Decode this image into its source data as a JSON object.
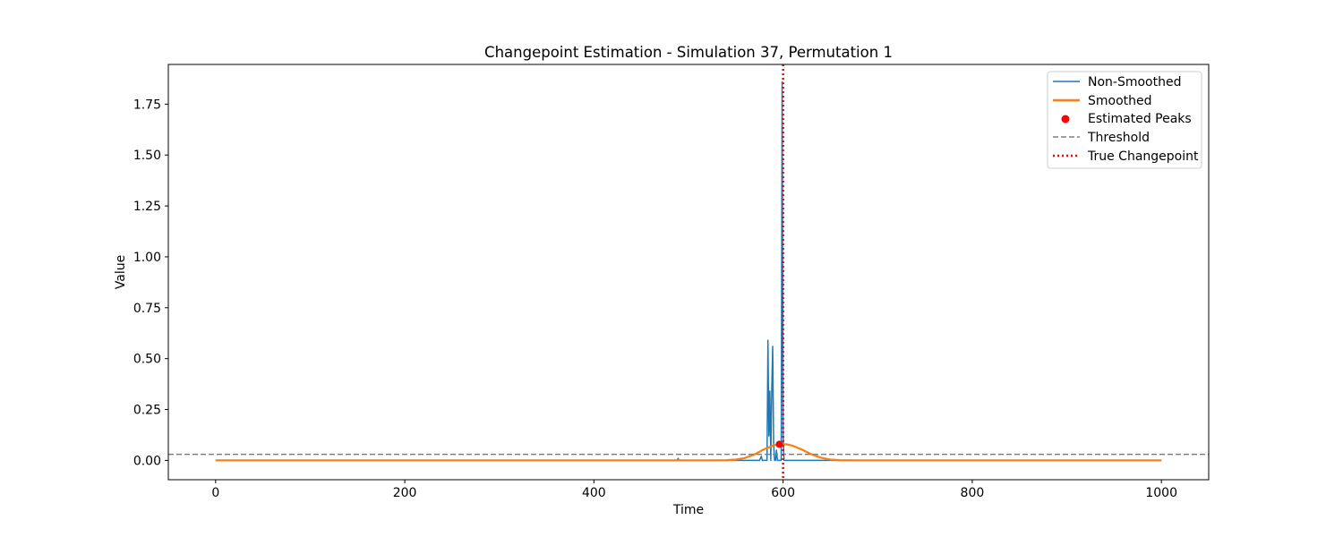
{
  "chart_data": {
    "type": "line",
    "title": "Changepoint Estimation - Simulation 37, Permutation 1",
    "xlabel": "Time",
    "ylabel": "Value",
    "xlim": [
      -50,
      1050
    ],
    "ylim": [
      -0.095,
      1.945
    ],
    "xticks": [
      0,
      200,
      400,
      600,
      800,
      1000
    ],
    "xtick_labels": [
      "0",
      "200",
      "400",
      "600",
      "800",
      "1000"
    ],
    "yticks": [
      0.0,
      0.25,
      0.5,
      0.75,
      1.0,
      1.25,
      1.5,
      1.75
    ],
    "ytick_labels": [
      "0.00",
      "0.25",
      "0.50",
      "0.75",
      "1.00",
      "1.25",
      "1.50",
      "1.75"
    ],
    "grid": false,
    "legend_position": "top-right",
    "colors": {
      "non_smoothed": "#1f77b4",
      "smoothed": "#ff7f0e",
      "peaks": "#ff0000",
      "threshold": "#808080",
      "changepoint": "#ff0000"
    },
    "series": [
      {
        "name": "Non-Smoothed",
        "style": "solid",
        "x": [
          0,
          488,
          489,
          490,
          575,
          576,
          577,
          578,
          583,
          584,
          585,
          586,
          587,
          588,
          589,
          590,
          591,
          592,
          593,
          594,
          598,
          599,
          600,
          601,
          1000
        ],
        "y": [
          0,
          0,
          0.01,
          0,
          0,
          0.01,
          0.02,
          0,
          0,
          0.59,
          0.12,
          0.34,
          0,
          0.34,
          0.56,
          0.08,
          0,
          0,
          0.05,
          0,
          0,
          1.86,
          0.12,
          0,
          0
        ]
      },
      {
        "name": "Smoothed",
        "style": "solid",
        "x": [
          0,
          520,
          540,
          550,
          560,
          570,
          580,
          590,
          595,
          600,
          605,
          610,
          620,
          630,
          640,
          650,
          660,
          680,
          1000
        ],
        "y": [
          0,
          0,
          0.001,
          0.004,
          0.012,
          0.03,
          0.055,
          0.074,
          0.079,
          0.08,
          0.078,
          0.072,
          0.053,
          0.03,
          0.013,
          0.004,
          0.001,
          0,
          0
        ]
      }
    ],
    "estimated_peaks": {
      "name": "Estimated Peaks",
      "x": [
        596
      ],
      "y": [
        0.079
      ]
    },
    "threshold": {
      "name": "Threshold",
      "value": 0.03
    },
    "true_changepoint": {
      "name": "True Changepoint",
      "value": 600
    },
    "legend": [
      "Non-Smoothed",
      "Smoothed",
      "Estimated Peaks",
      "Threshold",
      "True Changepoint"
    ]
  }
}
